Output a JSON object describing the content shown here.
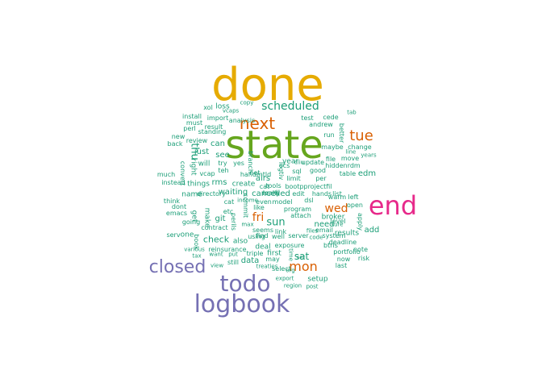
{
  "colors": {
    "teal": "#1b9e77",
    "orange": "#d95f02",
    "purple": "#7570b3",
    "magenta": "#e7298a",
    "green": "#66a61e",
    "gold": "#e6ab02"
  },
  "words": [
    {
      "text": "done",
      "color": "gold"
    },
    {
      "text": "state",
      "color": "green"
    },
    {
      "text": "end",
      "color": "magenta"
    },
    {
      "text": "logbook",
      "color": "purple"
    },
    {
      "text": "todo",
      "color": "purple"
    },
    {
      "text": "closed",
      "color": "purple"
    },
    {
      "text": "next",
      "color": "orange"
    },
    {
      "text": "tue",
      "color": "orange"
    },
    {
      "text": "mon",
      "color": "orange"
    },
    {
      "text": "wed",
      "color": "orange"
    },
    {
      "text": "fri",
      "color": "orange"
    },
    {
      "text": "scheduled",
      "color": "teal"
    },
    {
      "text": "sun",
      "color": "teal"
    },
    {
      "text": "sat",
      "color": "teal"
    },
    {
      "text": "thu",
      "color": "teal"
    },
    {
      "text": "check",
      "color": "teal"
    },
    {
      "text": "waiting",
      "color": "teal"
    },
    {
      "text": "cancelled",
      "color": "teal"
    },
    {
      "text": "data",
      "color": "teal"
    },
    {
      "text": "create",
      "color": "teal"
    },
    {
      "text": "can",
      "color": "teal"
    },
    {
      "text": "see",
      "color": "teal"
    },
    {
      "text": "just",
      "color": "teal"
    },
    {
      "text": "will",
      "color": "teal"
    },
    {
      "text": "rms",
      "color": "teal"
    },
    {
      "text": "git",
      "color": "teal"
    },
    {
      "text": "get",
      "color": "teal"
    },
    {
      "text": "make",
      "color": "teal"
    },
    {
      "text": "also",
      "color": "teal"
    },
    {
      "text": "deal",
      "color": "teal"
    },
    {
      "text": "first",
      "color": "teal"
    },
    {
      "text": "may",
      "color": "teal"
    },
    {
      "text": "setup",
      "color": "teal"
    },
    {
      "text": "need",
      "color": "teal"
    },
    {
      "text": "results",
      "color": "teal"
    },
    {
      "text": "add",
      "color": "teal"
    },
    {
      "text": "airs",
      "color": "teal"
    },
    {
      "text": "year",
      "color": "teal"
    },
    {
      "text": "broker",
      "color": "teal"
    },
    {
      "text": "one",
      "color": "teal"
    },
    {
      "text": "things",
      "color": "teal"
    },
    {
      "text": "name",
      "color": "teal"
    },
    {
      "text": "right",
      "color": "teal"
    },
    {
      "text": "convert",
      "color": "teal"
    },
    {
      "text": "loss",
      "color": "teal"
    },
    {
      "text": "xol",
      "color": "teal"
    },
    {
      "text": "vcaps",
      "color": "teal"
    },
    {
      "text": "copy",
      "color": "teal"
    },
    {
      "text": "analysis",
      "color": "teal"
    },
    {
      "text": "import",
      "color": "teal"
    },
    {
      "text": "install",
      "color": "teal"
    },
    {
      "text": "must",
      "color": "teal"
    },
    {
      "text": "result",
      "color": "teal"
    },
    {
      "text": "perl",
      "color": "teal"
    },
    {
      "text": "standing",
      "color": "teal"
    },
    {
      "text": "new",
      "color": "teal"
    },
    {
      "text": "review",
      "color": "teal"
    },
    {
      "text": "back",
      "color": "teal"
    },
    {
      "text": "much",
      "color": "teal"
    },
    {
      "text": "instead",
      "color": "teal"
    },
    {
      "text": "serv",
      "color": "teal"
    },
    {
      "text": "think",
      "color": "teal"
    },
    {
      "text": "dont",
      "color": "teal"
    },
    {
      "text": "emacs",
      "color": "teal"
    },
    {
      "text": "going",
      "color": "teal"
    },
    {
      "text": "contract",
      "color": "teal"
    },
    {
      "text": "book",
      "color": "teal"
    },
    {
      "text": "various",
      "color": "teal"
    },
    {
      "text": "tax",
      "color": "teal"
    },
    {
      "text": "want",
      "color": "teal"
    },
    {
      "text": "put",
      "color": "teal"
    },
    {
      "text": "view",
      "color": "teal"
    },
    {
      "text": "still",
      "color": "teal"
    },
    {
      "text": "reinsurance",
      "color": "teal"
    },
    {
      "text": "triple",
      "color": "teal"
    },
    {
      "text": "treaties",
      "color": "teal"
    },
    {
      "text": "select",
      "color": "teal"
    },
    {
      "text": "org",
      "color": "teal"
    },
    {
      "text": "export",
      "color": "teal"
    },
    {
      "text": "region",
      "color": "teal"
    },
    {
      "text": "post",
      "color": "teal"
    },
    {
      "text": "set",
      "color": "teal"
    },
    {
      "text": "time",
      "color": "teal"
    },
    {
      "text": "exposure",
      "color": "teal"
    },
    {
      "text": "server",
      "color": "teal"
    },
    {
      "text": "files",
      "color": "teal"
    },
    {
      "text": "code",
      "color": "teal"
    },
    {
      "text": "system",
      "color": "teal"
    },
    {
      "text": "btrls",
      "color": "teal"
    },
    {
      "text": "portfolio",
      "color": "teal"
    },
    {
      "text": "last",
      "color": "teal"
    },
    {
      "text": "now",
      "color": "teal"
    },
    {
      "text": "note",
      "color": "teal"
    },
    {
      "text": "deadline",
      "color": "teal"
    },
    {
      "text": "risk",
      "color": "teal"
    },
    {
      "text": "apply",
      "color": "teal"
    },
    {
      "text": "open",
      "color": "teal"
    },
    {
      "text": "left",
      "color": "teal"
    },
    {
      "text": "warm",
      "color": "teal"
    },
    {
      "text": "table",
      "color": "teal"
    },
    {
      "text": "edm",
      "color": "teal"
    },
    {
      "text": "hiddenrdm",
      "color": "teal"
    },
    {
      "text": "change",
      "color": "teal"
    },
    {
      "text": "maybe",
      "color": "teal"
    },
    {
      "text": "file",
      "color": "teal"
    },
    {
      "text": "move",
      "color": "teal"
    },
    {
      "text": "line",
      "color": "teal"
    },
    {
      "text": "years",
      "color": "teal"
    },
    {
      "text": "better",
      "color": "teal"
    },
    {
      "text": "run",
      "color": "teal"
    },
    {
      "text": "andrew",
      "color": "teal"
    },
    {
      "text": "test",
      "color": "teal"
    },
    {
      "text": "cede",
      "color": "teal"
    },
    {
      "text": "tab",
      "color": "teal"
    },
    {
      "text": "update",
      "color": "teal"
    },
    {
      "text": "cliu",
      "color": "teal"
    },
    {
      "text": "sql",
      "color": "teal"
    },
    {
      "text": "good",
      "color": "teal"
    },
    {
      "text": "per",
      "color": "teal"
    },
    {
      "text": "projectfil",
      "color": "teal"
    },
    {
      "text": "bootp",
      "color": "teal"
    },
    {
      "text": "edit",
      "color": "teal"
    },
    {
      "text": "hands",
      "color": "teal"
    },
    {
      "text": "list",
      "color": "teal"
    },
    {
      "text": "limit",
      "color": "teal"
    },
    {
      "text": "logtiv",
      "color": "teal"
    },
    {
      "text": "scs",
      "color": "teal"
    },
    {
      "text": "dsl",
      "color": "teal"
    },
    {
      "text": "level",
      "color": "teal"
    },
    {
      "text": "sure",
      "color": "teal"
    },
    {
      "text": "email",
      "color": "teal"
    },
    {
      "text": "attach",
      "color": "teal"
    },
    {
      "text": "program",
      "color": "teal"
    },
    {
      "text": "model",
      "color": "teal"
    },
    {
      "text": "even",
      "color": "teal"
    },
    {
      "text": "income",
      "color": "teal"
    },
    {
      "text": "like",
      "color": "teal"
    },
    {
      "text": "max",
      "color": "teal"
    },
    {
      "text": "seems",
      "color": "teal"
    },
    {
      "text": "link",
      "color": "teal"
    },
    {
      "text": "using",
      "color": "teal"
    },
    {
      "text": "find",
      "color": "teal"
    },
    {
      "text": "well",
      "color": "teal"
    },
    {
      "text": "cat",
      "color": "teal"
    },
    {
      "text": "tools",
      "color": "teal"
    },
    {
      "text": "net",
      "color": "teal"
    },
    {
      "text": "yes",
      "color": "teal"
    },
    {
      "text": "branch",
      "color": "teal"
    },
    {
      "text": "try",
      "color": "teal"
    },
    {
      "text": "teh",
      "color": "teal"
    },
    {
      "text": "vcap",
      "color": "teal"
    },
    {
      "text": "handmtld",
      "color": "teal"
    },
    {
      "text": "directory",
      "color": "teal"
    },
    {
      "text": "cat",
      "color": "teal"
    },
    {
      "text": "etc",
      "color": "teal"
    },
    {
      "text": "perils",
      "color": "teal"
    },
    {
      "text": "commit",
      "color": "teal"
    },
    {
      "text": "learn",
      "color": "teal"
    },
    {
      "text": "really",
      "color": "teal"
    }
  ]
}
